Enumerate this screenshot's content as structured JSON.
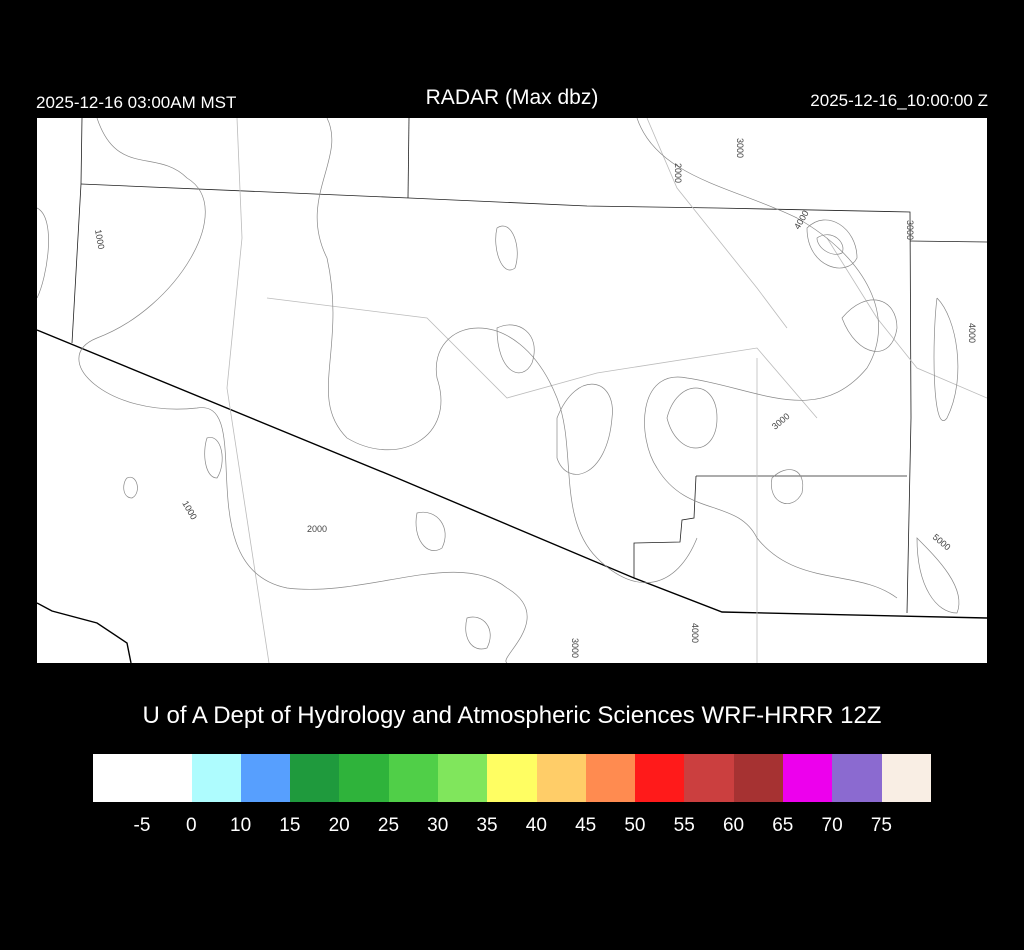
{
  "header": {
    "local_time": "2025-12-16 03:00AM MST",
    "title": "RADAR (Max dbz)",
    "utc_time": "2025-12-16_10:00:00 Z"
  },
  "credit": "U of A Dept of Hydrology and Atmospheric Sciences WRF-HRRR 12Z",
  "map": {
    "contour_labels": [
      "1000",
      "1000",
      "2000",
      "2000",
      "3000",
      "3000",
      "3000",
      "3000",
      "4000",
      "4000",
      "4000",
      "5000"
    ],
    "radar_echoes": "none"
  },
  "colorbar": {
    "colors": [
      "#ffffff",
      "#aefcfe",
      "#579ffe",
      "#1f9a3d",
      "#2fb33b",
      "#50cf48",
      "#80e65c",
      "#fffe62",
      "#ffcd68",
      "#ff8b50",
      "#ff1a1a",
      "#cb3f3f",
      "#a63232",
      "#ed00ed",
      "#8b6ad0",
      "#f9eee4"
    ],
    "labels": [
      "-5",
      "0",
      "10",
      "15",
      "20",
      "25",
      "30",
      "35",
      "40",
      "45",
      "50",
      "55",
      "60",
      "65",
      "70",
      "75"
    ]
  }
}
